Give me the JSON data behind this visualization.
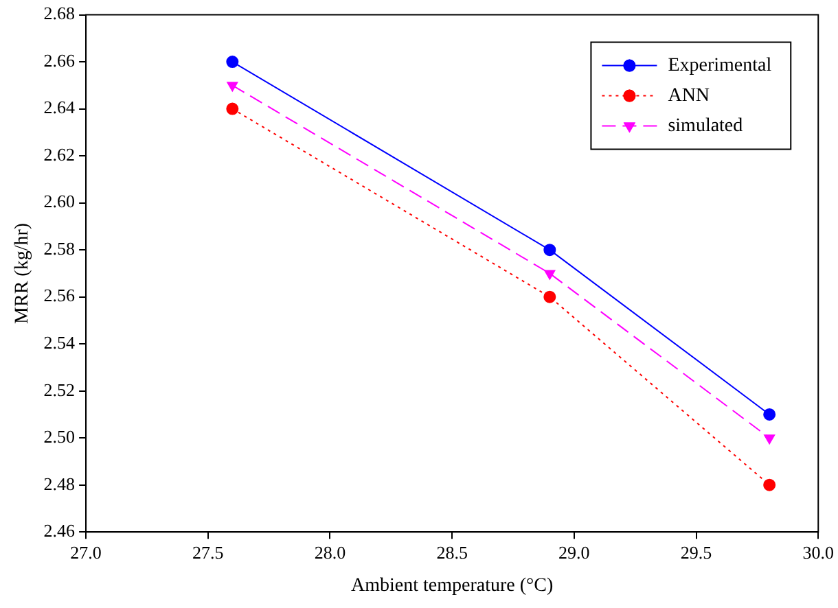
{
  "chart_data": {
    "type": "line",
    "xlabel": "Ambient temperature (°C)",
    "ylabel": "MRR (kg/hr)",
    "xlim": [
      27.0,
      30.0
    ],
    "xticks": [
      {
        "value": 27,
        "label": "27.0"
      },
      {
        "value": 27.5,
        "label": "27.5"
      },
      {
        "value": 28,
        "label": "28.0"
      },
      {
        "value": 28.5,
        "label": "28.5"
      },
      {
        "value": 29,
        "label": "29.0"
      },
      {
        "value": 29.5,
        "label": "29.5"
      },
      {
        "value": 30,
        "label": "30.0"
      }
    ],
    "ylim": [
      2.46,
      2.68
    ],
    "yticks": [
      2.46,
      2.48,
      {
        "value": 2.5,
        "label": "2.50"
      },
      2.52,
      2.54,
      2.56,
      2.58,
      {
        "value": 2.6,
        "label": "2.60"
      },
      2.62,
      2.64,
      2.66,
      2.68
    ],
    "legend": "top right",
    "series": [
      {
        "name": "Experimental",
        "color": "#0000ff",
        "x": [
          27.6,
          28.9,
          29.8
        ],
        "values": [
          2.66,
          2.58,
          2.51
        ],
        "marker": "circle",
        "line_style": "solid"
      },
      {
        "name": "ANN",
        "color": "#ff0000",
        "x": [
          27.6,
          28.9,
          29.8
        ],
        "values": [
          2.64,
          2.56,
          2.48
        ],
        "marker": "circle",
        "line_style": "dotted"
      },
      {
        "name": "simulated",
        "color": "#ff00ff",
        "x": [
          27.6,
          28.9,
          29.8
        ],
        "values": [
          2.65,
          2.57,
          2.5
        ],
        "marker": "triangle",
        "line_style": "dashed"
      }
    ]
  }
}
